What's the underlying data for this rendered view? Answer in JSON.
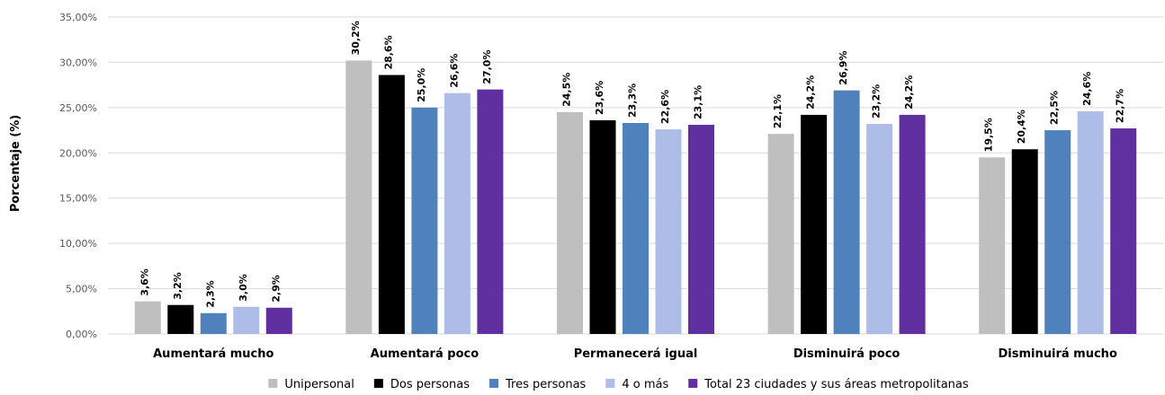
{
  "chart_data": {
    "type": "bar",
    "ylabel": "Porcentaje (%)",
    "ylim": [
      0,
      35
    ],
    "yticks": [
      "0,00%",
      "5,00%",
      "10,00%",
      "15,00%",
      "20,00%",
      "25,00%",
      "30,00%",
      "35,00%"
    ],
    "grid": true,
    "legend_position": "bottom",
    "categories": [
      "Aumentará mucho",
      "Aumentará poco",
      "Permanecerá igual",
      "Disminuirá poco",
      "Disminuirá mucho"
    ],
    "series": [
      {
        "name": "Unipersonal",
        "color": "#bfbfbf",
        "values": [
          3.6,
          30.2,
          24.5,
          22.1,
          19.5
        ],
        "labels": [
          "3,6%",
          "30,2%",
          "24,5%",
          "22,1%",
          "19,5%"
        ]
      },
      {
        "name": "Dos personas",
        "color": "#000000",
        "values": [
          3.2,
          28.6,
          23.6,
          24.2,
          20.4
        ],
        "labels": [
          "3,2%",
          "28,6%",
          "23,6%",
          "24,2%",
          "20,4%"
        ]
      },
      {
        "name": "Tres personas",
        "color": "#4f81bd",
        "values": [
          2.3,
          25.0,
          23.3,
          26.9,
          22.5
        ],
        "labels": [
          "2,3%",
          "25,0%",
          "23,3%",
          "26,9%",
          "22,5%"
        ]
      },
      {
        "name": "4 o más",
        "color": "#adbde8",
        "values": [
          3.0,
          26.6,
          22.6,
          23.2,
          24.6
        ],
        "labels": [
          "3,0%",
          "26,6%",
          "22,6%",
          "23,2%",
          "24,6%"
        ]
      },
      {
        "name": "Total 23 ciudades y sus áreas metropolitanas",
        "color": "#6030a0",
        "values": [
          2.9,
          27.0,
          23.1,
          24.2,
          22.7
        ],
        "labels": [
          "2,9%",
          "27,0%",
          "23,1%",
          "24,2%",
          "22,7%"
        ]
      }
    ]
  }
}
